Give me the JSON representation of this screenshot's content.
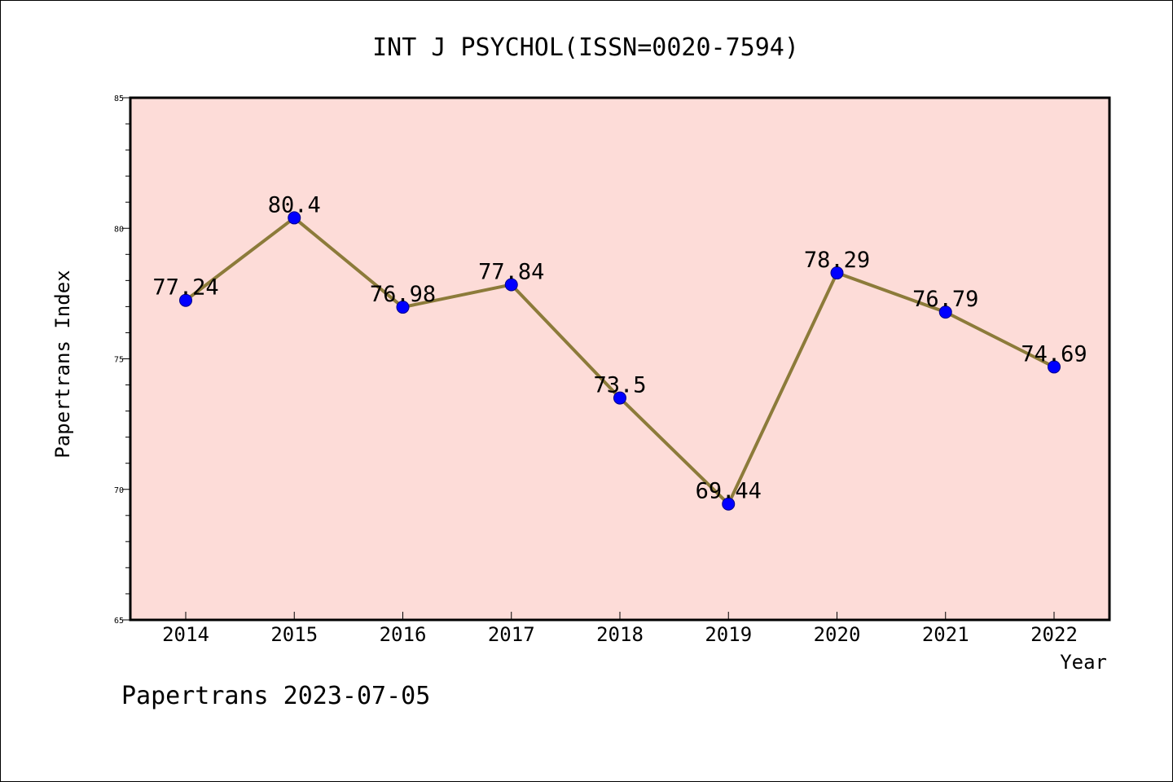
{
  "chart_data": {
    "type": "line",
    "title": "INT J PSYCHOL(ISSN=0020-7594)",
    "xlabel": "Year",
    "ylabel": "Papertrans Index",
    "categories": [
      "2014",
      "2015",
      "2016",
      "2017",
      "2018",
      "2019",
      "2020",
      "2021",
      "2022"
    ],
    "series": [
      {
        "values": [
          77.24,
          80.4,
          76.98,
          77.84,
          73.5,
          69.44,
          78.29,
          76.79,
          74.69
        ],
        "labels": [
          "77.24",
          "80.4",
          "76.98",
          "77.84",
          "73.5",
          "69.44",
          "78.29",
          "76.79",
          "74.69"
        ]
      }
    ],
    "ylim": [
      65,
      85
    ],
    "yticks": [
      "65",
      "70",
      "75",
      "80",
      "85"
    ],
    "grid": false,
    "colors": {
      "plot_background": "#fddcd8",
      "line": "#8c7b3a",
      "marker": "#0000ff",
      "marker_edge": "#00008b"
    }
  },
  "footer": {
    "text": "Papertrans 2023-07-05"
  }
}
